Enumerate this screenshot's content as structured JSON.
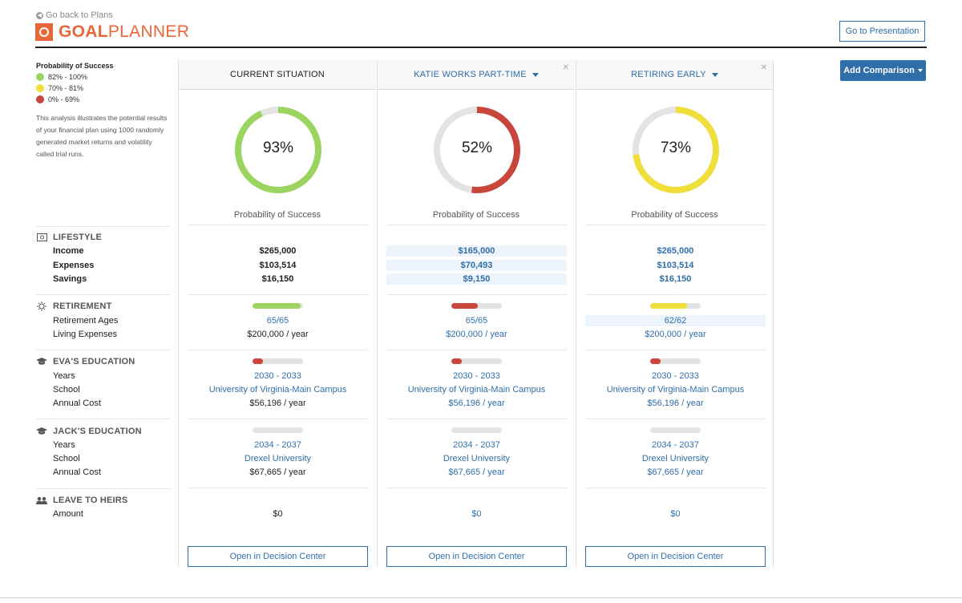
{
  "header": {
    "back_link": "Go back to Plans",
    "logo_bold": "GOAL",
    "logo_light": "PLANNER",
    "go_presentation": "Go to Presentation",
    "add_comparison": "Add Comparison"
  },
  "legend": {
    "title": "Probability of Success",
    "items": [
      {
        "label": "82% - 100%",
        "color": "#9bd45f"
      },
      {
        "label": "70% - 81%",
        "color": "#f0df3a"
      },
      {
        "label": "0% - 69%",
        "color": "#c9463d"
      }
    ],
    "description": "This analysis illustrates the potential results of your financial plan using 1000 randomly generated market returns and volatility called trial runs."
  },
  "sections": {
    "lifestyle": {
      "title": "LIFESTYLE",
      "rows": [
        "Income",
        "Expenses",
        "Savings"
      ]
    },
    "retirement": {
      "title": "RETIREMENT",
      "rows": [
        "Retirement Ages",
        "Living Expenses"
      ]
    },
    "eva": {
      "title": "EVA'S EDUCATION",
      "rows": [
        "Years",
        "School",
        "Annual Cost"
      ]
    },
    "jack": {
      "title": "JACK'S EDUCATION",
      "rows": [
        "Years",
        "School",
        "Annual Cost"
      ]
    },
    "heirs": {
      "title": "LEAVE TO HEIRS",
      "rows": [
        "Amount"
      ]
    }
  },
  "columns": [
    {
      "title": "CURRENT SITUATION",
      "percent_label": "93%",
      "percent": 93,
      "color": "#9bd45f",
      "pos_label": "Probability of Success",
      "income": "$265,000",
      "expenses": "$103,514",
      "savings": "$16,150",
      "retirement_bar": 0.95,
      "retirement_bar_color": "#9bd45f",
      "retirement_ages": "65/65",
      "living_expenses": "$200,000 / year",
      "eva_bar": 0.2,
      "eva_years": "2030 - 2033",
      "eva_school": "University of Virginia-Main Campus",
      "eva_cost": "$56,196 / year",
      "jack_bar": 0,
      "jack_years": "2034 - 2037",
      "jack_school": "Drexel University",
      "jack_cost": "$67,665 / year",
      "heirs_amount": "$0",
      "open_button": "Open in Decision Center"
    },
    {
      "title": "KATIE WORKS PART-TIME",
      "percent_label": "52%",
      "percent": 52,
      "color": "#c9463d",
      "pos_label": "Probability of Success",
      "income": "$165,000",
      "expenses": "$70,493",
      "savings": "$9,150",
      "retirement_bar": 0.52,
      "retirement_bar_color": "#c9463d",
      "retirement_ages": "65/65",
      "living_expenses": "$200,000 / year",
      "eva_bar": 0.2,
      "eva_years": "2030 - 2033",
      "eva_school": "University of Virginia-Main Campus",
      "eva_cost": "$56,196 / year",
      "jack_bar": 0,
      "jack_years": "2034 - 2037",
      "jack_school": "Drexel University",
      "jack_cost": "$67,665 / year",
      "heirs_amount": "$0",
      "open_button": "Open in Decision Center"
    },
    {
      "title": "RETIRING EARLY",
      "percent_label": "73%",
      "percent": 73,
      "color": "#f0df3a",
      "pos_label": "Probability of Success",
      "income": "$265,000",
      "expenses": "$103,514",
      "savings": "$16,150",
      "retirement_bar": 0.73,
      "retirement_bar_color": "#f0df3a",
      "retirement_ages": "62/62",
      "living_expenses": "$200,000 / year",
      "eva_bar": 0.2,
      "eva_years": "2030 - 2033",
      "eva_school": "University of Virginia-Main Campus",
      "eva_cost": "$56,196 / year",
      "jack_bar": 0,
      "jack_years": "2034 - 2037",
      "jack_school": "Drexel University",
      "jack_cost": "$67,665 / year",
      "heirs_amount": "$0",
      "open_button": "Open in Decision Center"
    }
  ]
}
